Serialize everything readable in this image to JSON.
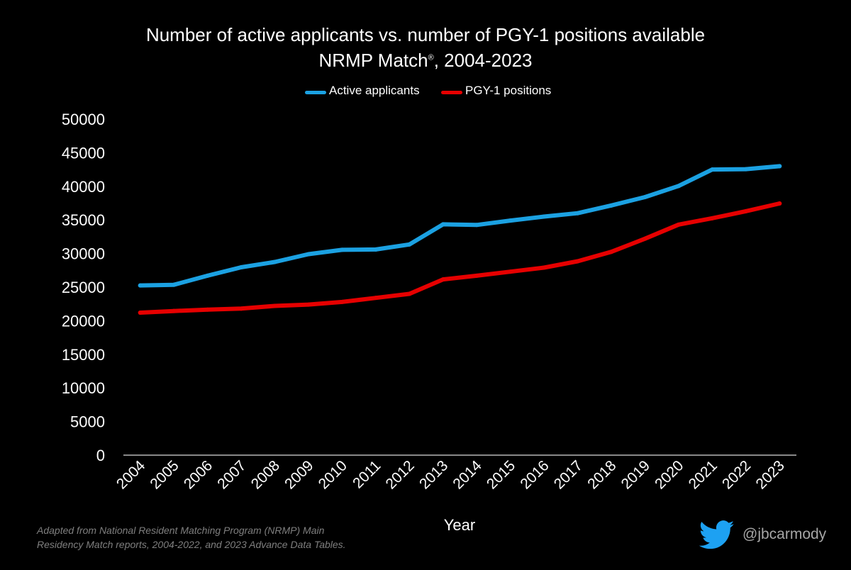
{
  "chart_data": {
    "type": "line",
    "title": "Number of active applicants vs. number of PGY-1 positions available",
    "subtitle_main": "NRMP Match",
    "subtitle_mark": "®",
    "subtitle_rest": ", 2004-2023",
    "xlabel": "Year",
    "ylabel": "",
    "ylim": [
      0,
      50000
    ],
    "yticks": [
      "0",
      "5000",
      "10000",
      "15000",
      "20000",
      "25000",
      "30000",
      "35000",
      "40000",
      "45000",
      "50000"
    ],
    "categories": [
      "2004",
      "2005",
      "2006",
      "2007",
      "2008",
      "2009",
      "2010",
      "2011",
      "2012",
      "2013",
      "2014",
      "2015",
      "2016",
      "2017",
      "2018",
      "2019",
      "2020",
      "2021",
      "2022",
      "2023"
    ],
    "legend_position": "top",
    "grid": false,
    "series": [
      {
        "name": "Active applicants",
        "color": "#1ba1e2",
        "values": [
          25250,
          25350,
          26700,
          27950,
          28750,
          29900,
          30550,
          30600,
          31350,
          34350,
          34250,
          34900,
          35500,
          36000,
          37150,
          38400,
          40050,
          42500,
          42550,
          43000
        ]
      },
      {
        "name": "PGY-1 positions",
        "color": "#e60000",
        "values": [
          21200,
          21450,
          21650,
          21800,
          22200,
          22400,
          22800,
          23400,
          24000,
          26150,
          26700,
          27300,
          27900,
          28850,
          30250,
          32200,
          34300,
          35250,
          36300,
          37450
        ]
      }
    ]
  },
  "footnote": {
    "line1": "Adapted from National Resident Matching Program (NRMP) Main",
    "line2": "Residency Match reports, 2004-2022, and 2023 Advance Data Tables."
  },
  "credit": {
    "handle": "@jbcarmody",
    "icon": "twitter-bird-icon",
    "icon_color": "#1da1f2"
  },
  "colors": {
    "background": "#000000",
    "axis": "#d9d9d9",
    "footnote": "#7f7f7f"
  }
}
